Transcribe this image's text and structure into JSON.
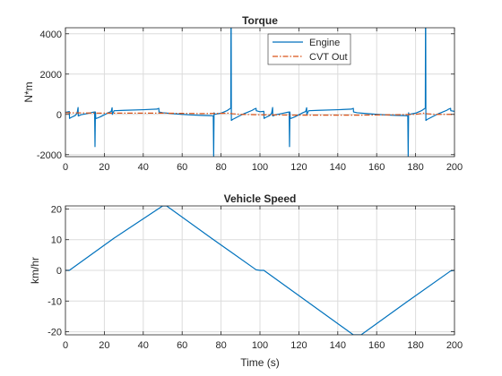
{
  "colors": {
    "engine": "#0072BD",
    "cvt": "#D95319",
    "axis": "#262626",
    "grid": "#dcdcdc"
  },
  "chart_data": [
    {
      "type": "line",
      "title": "Torque",
      "xlabel": "",
      "ylabel": "N*m",
      "xlim": [
        0,
        200
      ],
      "ylim": [
        -2100,
        4300
      ],
      "xticks": [
        0,
        20,
        40,
        60,
        80,
        100,
        120,
        140,
        160,
        180,
        200
      ],
      "yticks": [
        -2000,
        0,
        2000,
        4000
      ],
      "ytick_labels": [
        "-2000",
        "0",
        "2000",
        "4000"
      ],
      "grid": true,
      "legend": {
        "placement": "top-center",
        "entries": [
          "Engine",
          "CVT Out"
        ]
      },
      "series": [
        {
          "name": "Engine",
          "style": "solid",
          "x": [
            0,
            1,
            2,
            2.1,
            3,
            5,
            6,
            6.5,
            6.6,
            8,
            10,
            12,
            14,
            15,
            15.2,
            15.4,
            15.6,
            16,
            18,
            20,
            22,
            23.5,
            24,
            24.1,
            25,
            30,
            40,
            47,
            48,
            48.1,
            50,
            55,
            60,
            65,
            70,
            74,
            75.5,
            76,
            76.2,
            76.4,
            76.6,
            77,
            80,
            83,
            84.5,
            85,
            85.1,
            85.2,
            85.3,
            86,
            88,
            90,
            92,
            94,
            96,
            97,
            98,
            98.1,
            100,
            101,
            102,
            102.1,
            103,
            105,
            106,
            106.5,
            106.6,
            108,
            110,
            112,
            114,
            115,
            115.2,
            115.4,
            115.6,
            116,
            118,
            120,
            122,
            123.5,
            124,
            124.1,
            125,
            130,
            140,
            147,
            148,
            148.1,
            150,
            155,
            160,
            165,
            170,
            174,
            175.5,
            176,
            176.2,
            176.4,
            176.6,
            177,
            180,
            183,
            184.5,
            185,
            185.1,
            185.2,
            185.3,
            186,
            188,
            190,
            192,
            194,
            196,
            197,
            198,
            198.1,
            200
          ],
          "y": [
            100,
            120,
            140,
            -200,
            -150,
            -60,
            60,
            340,
            -80,
            -20,
            20,
            60,
            100,
            120,
            -1600,
            120,
            -200,
            -200,
            -120,
            -20,
            80,
            140,
            330,
            0,
            180,
            200,
            230,
            260,
            300,
            120,
            80,
            40,
            0,
            -30,
            -50,
            -60,
            -70,
            -80,
            -2100,
            80,
            0,
            10,
            60,
            180,
            280,
            300,
            4300,
            4300,
            -300,
            -250,
            -150,
            -50,
            40,
            120,
            200,
            260,
            300,
            180,
            130,
            140,
            150,
            -200,
            -150,
            -60,
            60,
            340,
            -80,
            -20,
            20,
            60,
            100,
            120,
            -1600,
            120,
            -200,
            -200,
            -120,
            -20,
            80,
            140,
            330,
            0,
            180,
            200,
            230,
            260,
            300,
            120,
            80,
            40,
            0,
            -30,
            -50,
            -60,
            -70,
            -80,
            -2100,
            80,
            0,
            10,
            60,
            180,
            280,
            300,
            4300,
            4300,
            -300,
            -250,
            -150,
            -50,
            40,
            120,
            200,
            260,
            300,
            180,
            150
          ]
        },
        {
          "name": "CVT Out",
          "style": "dashdot",
          "x": [
            0,
            10,
            20,
            30,
            40,
            50,
            60,
            70,
            80,
            84,
            86,
            90,
            100,
            110,
            120,
            130,
            140,
            150,
            160,
            170,
            180,
            184,
            186,
            190,
            200
          ],
          "y": [
            80,
            70,
            60,
            60,
            60,
            60,
            50,
            40,
            50,
            60,
            30,
            0,
            -20,
            -30,
            -40,
            -40,
            -40,
            -40,
            -30,
            -20,
            0,
            60,
            30,
            0,
            0
          ]
        }
      ]
    },
    {
      "type": "line",
      "title": "Vehicle Speed",
      "xlabel": "Time (s)",
      "ylabel": "km/hr",
      "xlim": [
        0,
        200
      ],
      "ylim": [
        -21,
        21
      ],
      "xticks": [
        0,
        20,
        40,
        60,
        80,
        100,
        120,
        140,
        160,
        180,
        200
      ],
      "yticks": [
        -20,
        -10,
        0,
        10,
        20
      ],
      "grid": true,
      "series": [
        {
          "name": "",
          "style": "solid",
          "x": [
            0,
            2,
            25,
            50,
            52,
            75,
            98,
            100,
            102,
            125,
            148,
            150,
            152,
            175,
            198,
            200
          ],
          "y": [
            0,
            0,
            10.5,
            21,
            21,
            10.5,
            0.2,
            0,
            0,
            -10.5,
            -21,
            -21,
            -21,
            -10.5,
            -0.2,
            0
          ]
        }
      ]
    }
  ]
}
